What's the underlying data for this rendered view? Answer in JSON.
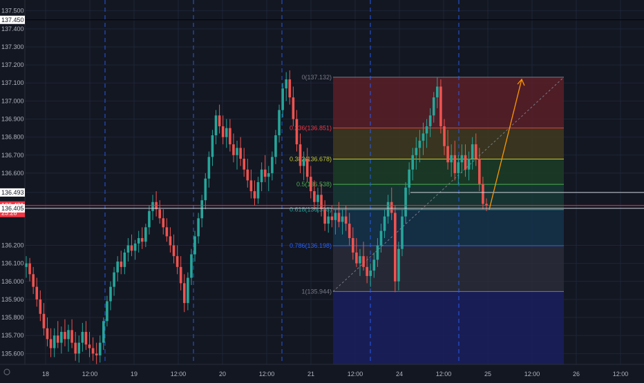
{
  "chart_data": {
    "type": "candlestick",
    "colors": {
      "background": "#131722",
      "grid": "#1f2536",
      "axis_text": "#b2b5be",
      "up": "#26a69a",
      "down": "#ef5350",
      "session_line": "#2962ff",
      "trend_line": "#787b86",
      "arrow": "#ff9800",
      "level_line": "#d1d4dc",
      "price_label_bg": "#f23645"
    },
    "y_axis": {
      "min": 135.54,
      "max": 137.56,
      "ticks": [
        "137.500",
        "137.450",
        "137.400",
        "137.300",
        "137.200",
        "137.100",
        "137.000",
        "136.900",
        "136.800",
        "136.700",
        "136.600",
        "136.493",
        "136.421",
        "136.405",
        "136.200",
        "136.100",
        "136.000",
        "135.900",
        "135.800",
        "135.700",
        "135.600"
      ],
      "current_price": "136.421",
      "countdown": "25:28",
      "marked_levels": [
        "137.450",
        "136.493",
        "136.405"
      ]
    },
    "x_axis": {
      "ticks": [
        "18",
        "12:00",
        "19",
        "12:00",
        "20",
        "12:00",
        "21",
        "12:00",
        "24",
        "12:00",
        "25",
        "12:00",
        "26",
        "12:00"
      ]
    },
    "session_breaks": [
      0,
      1,
      2,
      3,
      4
    ],
    "fibonacci": {
      "start_price": 135.944,
      "end_price": 137.132,
      "levels": [
        {
          "ratio": 0,
          "price": 137.132,
          "label": "0(137.132)",
          "color": "#787b86",
          "fill": "#5a1f27"
        },
        {
          "ratio": 0.236,
          "price": 136.851,
          "label": "0.236(136.851)",
          "color": "#f23645",
          "fill": "#3f3a1e"
        },
        {
          "ratio": 0.382,
          "price": 136.678,
          "label": "0.382(136.678)",
          "color": "#c0ca33",
          "fill": "#1c3d26"
        },
        {
          "ratio": 0.5,
          "price": 136.538,
          "label": "0.5(136.538)",
          "color": "#4caf50",
          "fill": "#173a35"
        },
        {
          "ratio": 0.618,
          "price": 136.398,
          "label": "0.618(136.398)",
          "color": "#26a69a",
          "fill": "#15334a"
        },
        {
          "ratio": 0.786,
          "price": 136.198,
          "label": "0.786(136.198)",
          "color": "#2962ff",
          "fill": "#2a2d38"
        },
        {
          "ratio": 1,
          "price": 135.944,
          "label": "1(135.944)",
          "color": "#787b86",
          "fill": "#1a1f5e"
        }
      ]
    },
    "horizontal_lines": [
      136.493,
      136.405
    ],
    "projection": {
      "from": 136.398,
      "to": 137.12
    },
    "candles": [
      [
        136.08,
        136.14,
        136.02,
        136.1
      ],
      [
        136.1,
        136.13,
        136.0,
        136.04
      ],
      [
        136.04,
        136.08,
        135.93,
        135.97
      ],
      [
        135.97,
        136.02,
        135.86,
        135.9
      ],
      [
        135.9,
        135.95,
        135.78,
        135.82
      ],
      [
        135.82,
        135.88,
        135.7,
        135.74
      ],
      [
        135.74,
        135.8,
        135.64,
        135.68
      ],
      [
        135.68,
        135.74,
        135.58,
        135.63
      ],
      [
        135.63,
        135.74,
        135.58,
        135.7
      ],
      [
        135.7,
        135.78,
        135.63,
        135.66
      ],
      [
        135.66,
        135.75,
        135.6,
        135.72
      ],
      [
        135.72,
        135.79,
        135.64,
        135.68
      ],
      [
        135.68,
        135.76,
        135.61,
        135.73
      ],
      [
        135.73,
        135.79,
        135.63,
        135.66
      ],
      [
        135.66,
        135.72,
        135.56,
        135.6
      ],
      [
        135.6,
        135.7,
        135.55,
        135.66
      ],
      [
        135.66,
        135.77,
        135.61,
        135.72
      ],
      [
        135.72,
        135.78,
        135.62,
        135.65
      ],
      [
        135.65,
        135.72,
        135.58,
        135.63
      ],
      [
        135.63,
        135.69,
        135.56,
        135.6
      ],
      [
        135.6,
        135.66,
        135.54,
        135.59
      ],
      [
        135.59,
        135.7,
        135.55,
        135.66
      ],
      [
        135.66,
        135.8,
        135.62,
        135.78
      ],
      [
        135.78,
        135.92,
        135.75,
        135.89
      ],
      [
        135.89,
        136.0,
        135.84,
        135.97
      ],
      [
        135.97,
        136.08,
        135.92,
        136.05
      ],
      [
        136.05,
        136.14,
        136.0,
        136.11
      ],
      [
        136.11,
        136.17,
        136.04,
        136.08
      ],
      [
        136.08,
        136.18,
        136.04,
        136.16
      ],
      [
        136.16,
        136.24,
        136.11,
        136.2
      ],
      [
        136.2,
        136.26,
        136.14,
        136.17
      ],
      [
        136.17,
        136.23,
        136.12,
        136.21
      ],
      [
        136.21,
        136.28,
        136.16,
        136.24
      ],
      [
        136.24,
        136.3,
        136.18,
        136.22
      ],
      [
        136.22,
        136.32,
        136.19,
        136.3
      ],
      [
        136.3,
        136.42,
        136.26,
        136.39
      ],
      [
        136.39,
        136.48,
        136.34,
        136.44
      ],
      [
        136.44,
        136.5,
        136.36,
        136.4
      ],
      [
        136.4,
        136.45,
        136.32,
        136.35
      ],
      [
        136.35,
        136.4,
        136.26,
        136.3
      ],
      [
        136.3,
        136.35,
        136.22,
        136.25
      ],
      [
        136.25,
        136.3,
        136.16,
        136.2
      ],
      [
        136.2,
        136.26,
        136.1,
        136.14
      ],
      [
        136.14,
        136.2,
        136.04,
        136.08
      ],
      [
        136.08,
        136.14,
        135.95,
        135.99
      ],
      [
        135.99,
        136.04,
        135.83,
        135.88
      ],
      [
        135.88,
        136.05,
        135.84,
        136.02
      ],
      [
        136.02,
        136.18,
        135.98,
        136.15
      ],
      [
        136.15,
        136.28,
        136.11,
        136.25
      ],
      [
        136.25,
        136.38,
        136.21,
        136.35
      ],
      [
        136.35,
        136.48,
        136.3,
        136.45
      ],
      [
        136.45,
        136.6,
        136.4,
        136.57
      ],
      [
        136.57,
        136.72,
        136.52,
        136.69
      ],
      [
        136.69,
        136.84,
        136.64,
        136.81
      ],
      [
        136.81,
        136.95,
        136.76,
        136.92
      ],
      [
        136.92,
        136.98,
        136.82,
        136.86
      ],
      [
        136.86,
        136.92,
        136.76,
        136.8
      ],
      [
        136.8,
        136.9,
        136.74,
        136.85
      ],
      [
        136.85,
        136.9,
        136.72,
        136.76
      ],
      [
        136.76,
        136.82,
        136.66,
        136.7
      ],
      [
        136.7,
        136.78,
        136.62,
        136.74
      ],
      [
        136.74,
        136.8,
        136.64,
        136.68
      ],
      [
        136.68,
        136.74,
        136.58,
        136.62
      ],
      [
        136.62,
        136.68,
        136.52,
        136.56
      ],
      [
        136.56,
        136.62,
        136.46,
        136.5
      ],
      [
        136.5,
        136.56,
        136.42,
        136.46
      ],
      [
        136.46,
        136.58,
        136.43,
        136.55
      ],
      [
        136.55,
        136.66,
        136.5,
        136.62
      ],
      [
        136.62,
        136.7,
        136.55,
        136.58
      ],
      [
        136.58,
        136.64,
        136.5,
        136.6
      ],
      [
        136.6,
        136.72,
        136.56,
        136.69
      ],
      [
        136.69,
        136.84,
        136.65,
        136.81
      ],
      [
        136.81,
        136.98,
        136.77,
        136.95
      ],
      [
        136.95,
        137.1,
        136.91,
        137.07
      ],
      [
        137.07,
        137.16,
        137.0,
        137.12
      ],
      [
        137.12,
        137.17,
        136.98,
        137.02
      ],
      [
        137.02,
        137.08,
        136.86,
        136.9
      ],
      [
        136.9,
        136.95,
        136.72,
        136.76
      ],
      [
        136.76,
        136.82,
        136.6,
        136.64
      ],
      [
        136.64,
        136.72,
        136.56,
        136.68
      ],
      [
        136.68,
        136.74,
        136.55,
        136.58
      ],
      [
        136.58,
        136.64,
        136.46,
        136.5
      ],
      [
        136.5,
        136.56,
        136.4,
        136.44
      ],
      [
        136.44,
        136.52,
        136.38,
        136.48
      ],
      [
        136.48,
        136.54,
        136.36,
        136.4
      ],
      [
        136.4,
        136.45,
        136.28,
        136.32
      ],
      [
        136.32,
        136.4,
        136.27,
        136.36
      ],
      [
        136.36,
        136.42,
        136.3,
        136.34
      ],
      [
        136.34,
        136.4,
        136.26,
        136.38
      ],
      [
        136.38,
        136.44,
        136.3,
        136.33
      ],
      [
        136.33,
        136.4,
        136.26,
        136.36
      ],
      [
        136.36,
        136.42,
        136.28,
        136.32
      ],
      [
        136.32,
        136.38,
        136.2,
        136.24
      ],
      [
        136.24,
        136.3,
        136.12,
        136.16
      ],
      [
        136.16,
        136.24,
        136.08,
        136.1
      ],
      [
        136.1,
        136.18,
        136.03,
        136.14
      ],
      [
        136.14,
        136.22,
        136.06,
        136.08
      ],
      [
        136.08,
        136.14,
        135.99,
        136.03
      ],
      [
        136.03,
        136.1,
        135.97,
        136.06
      ],
      [
        136.06,
        136.16,
        136.02,
        136.12
      ],
      [
        136.12,
        136.24,
        136.08,
        136.2
      ],
      [
        136.2,
        136.32,
        136.16,
        136.28
      ],
      [
        136.28,
        136.4,
        136.24,
        136.36
      ],
      [
        136.36,
        136.48,
        136.32,
        136.44
      ],
      [
        136.44,
        136.52,
        136.34,
        136.38
      ],
      [
        136.38,
        136.42,
        135.94,
        136.0
      ],
      [
        136.0,
        136.22,
        135.95,
        136.18
      ],
      [
        136.18,
        136.4,
        136.14,
        136.36
      ],
      [
        136.36,
        136.55,
        136.32,
        136.52
      ],
      [
        136.52,
        136.66,
        136.48,
        136.62
      ],
      [
        136.62,
        136.74,
        136.56,
        136.7
      ],
      [
        136.7,
        136.8,
        136.62,
        136.74
      ],
      [
        136.74,
        136.84,
        136.66,
        136.78
      ],
      [
        136.78,
        136.88,
        136.7,
        136.82
      ],
      [
        136.82,
        136.9,
        136.74,
        136.86
      ],
      [
        136.86,
        136.96,
        136.8,
        136.92
      ],
      [
        136.92,
        137.05,
        136.88,
        137.02
      ],
      [
        137.02,
        137.13,
        136.96,
        137.08
      ],
      [
        137.08,
        137.12,
        136.82,
        136.86
      ],
      [
        136.86,
        136.9,
        136.7,
        136.75
      ],
      [
        136.75,
        136.84,
        136.62,
        136.66
      ],
      [
        136.66,
        136.76,
        136.58,
        136.7
      ],
      [
        136.7,
        136.78,
        136.56,
        136.6
      ],
      [
        136.6,
        136.7,
        136.54,
        136.66
      ],
      [
        136.66,
        136.76,
        136.6,
        136.7
      ],
      [
        136.7,
        136.76,
        136.58,
        136.62
      ],
      [
        136.62,
        136.72,
        136.56,
        136.68
      ],
      [
        136.68,
        136.8,
        136.62,
        136.76
      ],
      [
        136.76,
        136.82,
        136.64,
        136.68
      ],
      [
        136.68,
        136.74,
        136.5,
        136.54
      ],
      [
        136.54,
        136.58,
        136.4,
        136.43
      ],
      [
        136.43,
        136.46,
        136.39,
        136.42
      ]
    ]
  }
}
